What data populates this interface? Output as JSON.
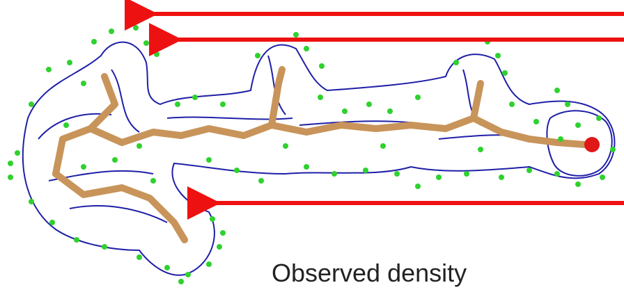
{
  "caption": "Observed density",
  "colors": {
    "mesh": "#1f1fa8",
    "backbone": "#c8945a",
    "atoms": "#2fd12f",
    "arrows": "#ee1111",
    "oxygen": "#e01818"
  },
  "legend": {
    "mesh_icon": "density-mesh-icon",
    "stick_icon": "stick-model-icon",
    "dot_icon": "point-cloud-icon"
  }
}
